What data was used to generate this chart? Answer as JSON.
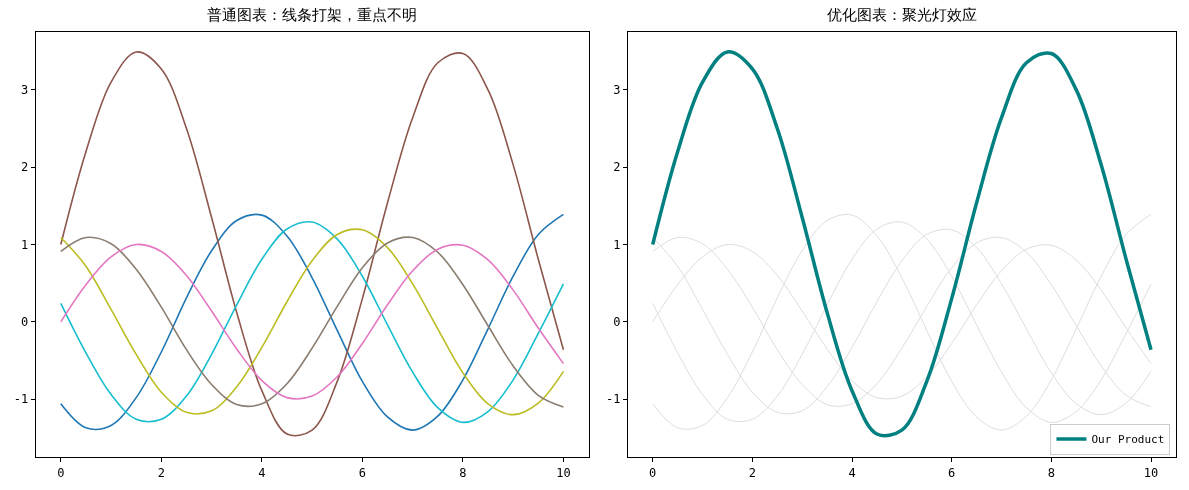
{
  "chart_data": [
    {
      "type": "line",
      "title": "普通图表：线条打架，重点不明",
      "x": [
        0,
        0.5,
        1,
        1.5,
        2,
        2.5,
        3,
        3.5,
        4,
        4.5,
        5,
        5.5,
        6,
        6.5,
        7,
        7.5,
        8,
        8.5,
        9,
        9.5,
        10
      ],
      "xlim": [
        -0.5,
        10.5
      ],
      "xticks": [
        0,
        2,
        4,
        6,
        8,
        10
      ],
      "ylim": [
        -1.75,
        3.75
      ],
      "yticks": [
        -1,
        0,
        1,
        2,
        3
      ],
      "legend": false,
      "series": [
        {
          "color": "#1f77b4",
          "values": [
            -1.06,
            -1.37,
            -1.34,
            -0.98,
            -0.39,
            0.31,
            0.92,
            1.31,
            1.38,
            1.11,
            0.57,
            -0.11,
            -0.77,
            -1.23,
            -1.4,
            -1.22,
            -0.75,
            -0.09,
            0.59,
            1.13,
            1.39
          ]
        },
        {
          "color": "#8c564b",
          "values": [
            1,
            2.2,
            3.1,
            3.49,
            3.27,
            2.5,
            1.35,
            0.12,
            -0.89,
            -1.45,
            -1.4,
            -0.77,
            0.3,
            1.54,
            2.64,
            3.35,
            3.47,
            3.0,
            2.03,
            0.81,
            -0.36
          ]
        },
        {
          "color": "#17becf",
          "values": [
            0.24,
            -0.4,
            -0.94,
            -1.26,
            -1.26,
            -0.96,
            -0.42,
            0.22,
            0.81,
            1.2,
            1.29,
            1.07,
            0.59,
            -0.04,
            -0.65,
            -1.11,
            -1.3,
            -1.16,
            -0.75,
            -0.15,
            0.49
          ]
        },
        {
          "color": "#bcbd22",
          "values": [
            1.09,
            0.72,
            0.16,
            -0.42,
            -0.91,
            -1.17,
            -1.15,
            -0.84,
            -0.33,
            0.26,
            0.79,
            1.13,
            1.19,
            0.96,
            0.49,
            -0.09,
            -0.66,
            -1.06,
            -1.2,
            -1.05,
            -0.64
          ]
        },
        {
          "color": "#8a7d70",
          "values": [
            0.91,
            1.09,
            1.01,
            0.68,
            0.19,
            -0.36,
            -0.81,
            -1.07,
            -1.06,
            -0.8,
            -0.34,
            0.2,
            0.7,
            1.02,
            1.09,
            0.9,
            0.48,
            -0.05,
            -0.57,
            -0.95,
            -1.1
          ]
        },
        {
          "color": "#e377c2",
          "values": [
            0,
            0.48,
            0.84,
            1.0,
            0.91,
            0.6,
            0.14,
            -0.35,
            -0.76,
            -0.98,
            -0.96,
            -0.71,
            -0.28,
            0.22,
            0.66,
            0.94,
            0.99,
            0.8,
            0.41,
            -0.08,
            -0.54
          ]
        }
      ]
    },
    {
      "type": "line",
      "title": "优化图表：聚光灯效应",
      "x": [
        0,
        0.5,
        1,
        1.5,
        2,
        2.5,
        3,
        3.5,
        4,
        4.5,
        5,
        5.5,
        6,
        6.5,
        7,
        7.5,
        8,
        8.5,
        9,
        9.5,
        10
      ],
      "xlim": [
        -0.5,
        10.5
      ],
      "xticks": [
        0,
        2,
        4,
        6,
        8,
        10
      ],
      "ylim": [
        -1.75,
        3.75
      ],
      "yticks": [
        -1,
        0,
        1,
        2,
        3
      ],
      "legend": "bottom right",
      "series": [
        {
          "color": "#dddddd",
          "values": [
            -1.06,
            -1.37,
            -1.34,
            -0.98,
            -0.39,
            0.31,
            0.92,
            1.31,
            1.38,
            1.11,
            0.57,
            -0.11,
            -0.77,
            -1.23,
            -1.4,
            -1.22,
            -0.75,
            -0.09,
            0.59,
            1.13,
            1.39
          ]
        },
        {
          "color": "#dddddd",
          "values": [
            0.24,
            -0.4,
            -0.94,
            -1.26,
            -1.26,
            -0.96,
            -0.42,
            0.22,
            0.81,
            1.2,
            1.29,
            1.07,
            0.59,
            -0.04,
            -0.65,
            -1.11,
            -1.3,
            -1.16,
            -0.75,
            -0.15,
            0.49
          ]
        },
        {
          "color": "#dddddd",
          "values": [
            1.09,
            0.72,
            0.16,
            -0.42,
            -0.91,
            -1.17,
            -1.15,
            -0.84,
            -0.33,
            0.26,
            0.79,
            1.13,
            1.19,
            0.96,
            0.49,
            -0.09,
            -0.66,
            -1.06,
            -1.2,
            -1.05,
            -0.64
          ]
        },
        {
          "color": "#dddddd",
          "values": [
            0.91,
            1.09,
            1.01,
            0.68,
            0.19,
            -0.36,
            -0.81,
            -1.07,
            -1.06,
            -0.8,
            -0.34,
            0.2,
            0.7,
            1.02,
            1.09,
            0.9,
            0.48,
            -0.05,
            -0.57,
            -0.95,
            -1.1
          ]
        },
        {
          "color": "#dddddd",
          "values": [
            0,
            0.48,
            0.84,
            1.0,
            0.91,
            0.6,
            0.14,
            -0.35,
            -0.76,
            -0.98,
            -0.96,
            -0.71,
            -0.28,
            0.22,
            0.66,
            0.94,
            0.99,
            0.8,
            0.41,
            -0.08,
            -0.54
          ]
        },
        {
          "name": "Our Product",
          "color": "#008080",
          "values": [
            1,
            2.2,
            3.1,
            3.49,
            3.27,
            2.5,
            1.35,
            0.12,
            -0.89,
            -1.45,
            -1.4,
            -0.77,
            0.3,
            1.54,
            2.64,
            3.35,
            3.47,
            3.0,
            2.03,
            0.81,
            -0.36
          ]
        }
      ]
    }
  ]
}
